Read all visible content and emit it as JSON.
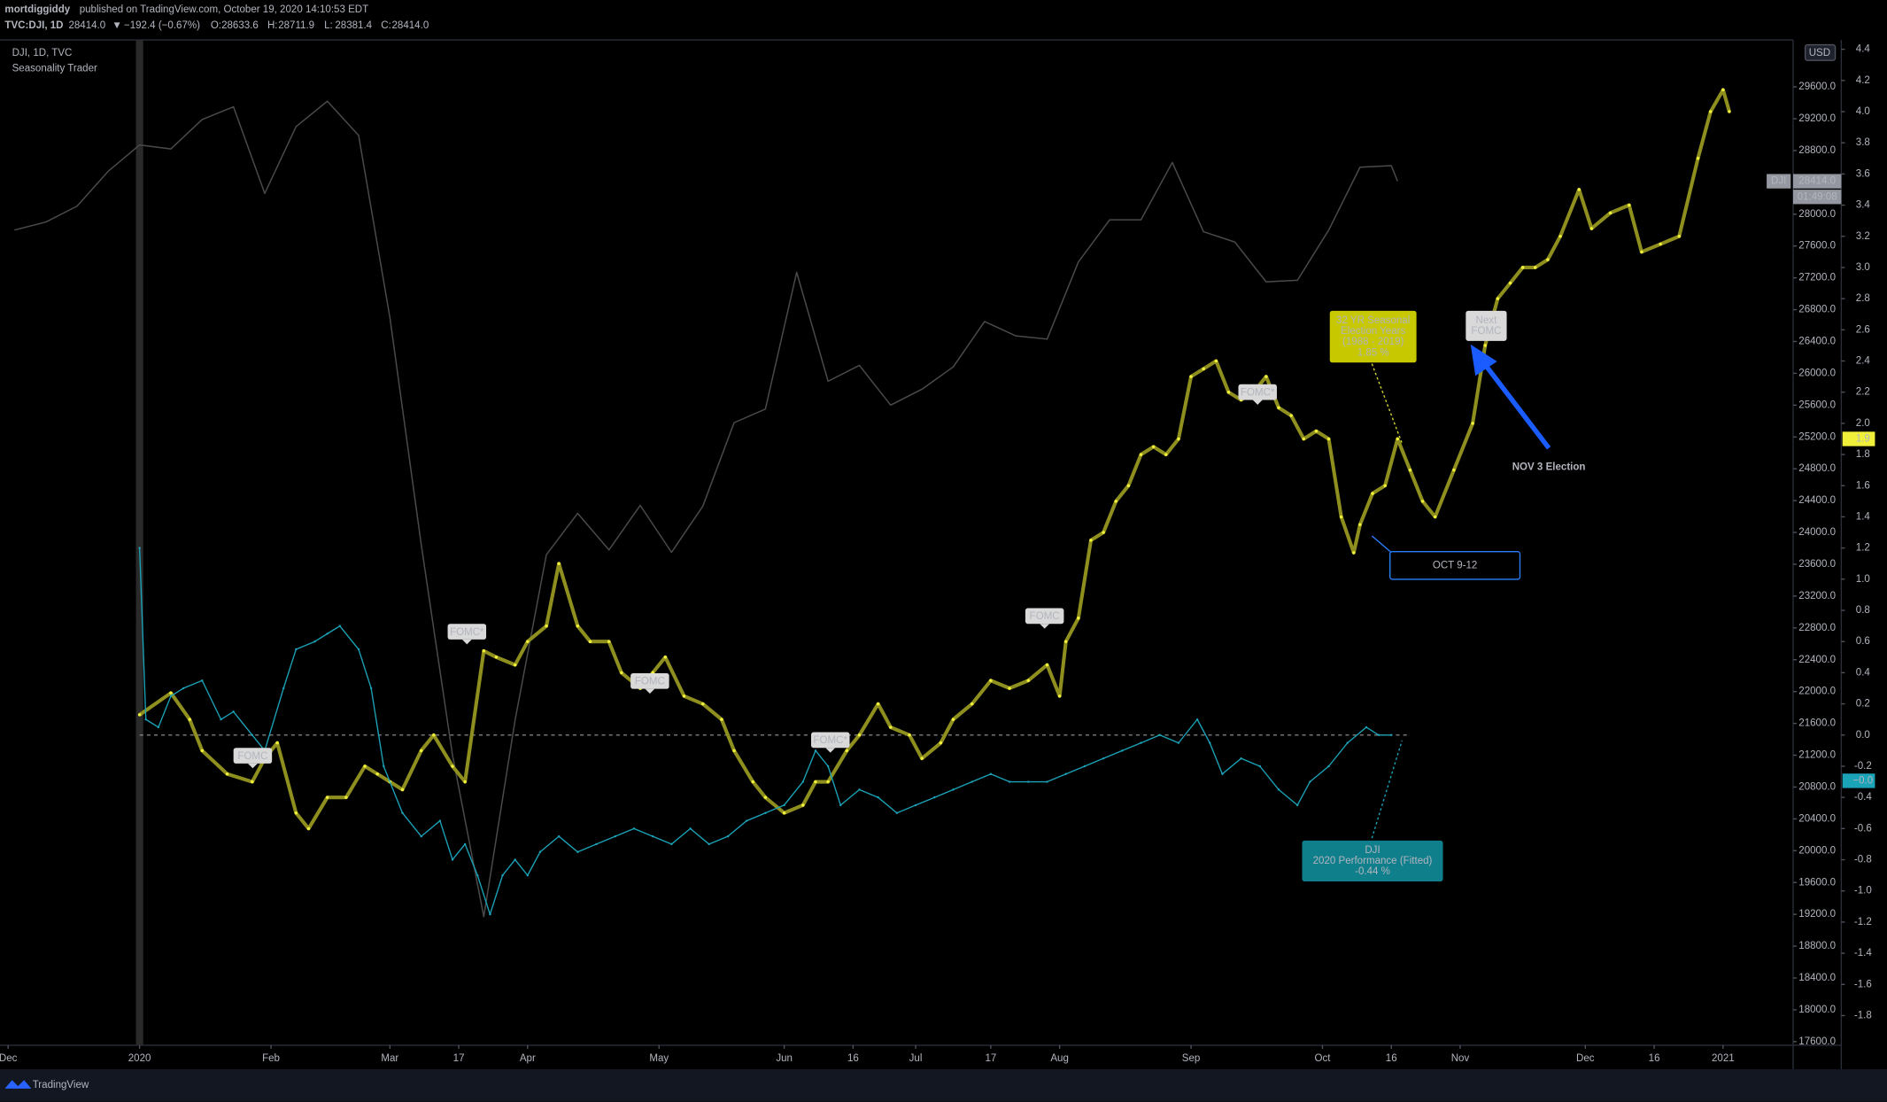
{
  "chart_data": {
    "type": "line",
    "xlim": [
      -22.3,
      264.2
    ],
    "ylim": [
      17555,
      30190
    ],
    "y2lim": [
      -1.99,
      4.46
    ],
    "grid": false,
    "xticks": [
      {
        "value": -21,
        "label": "Dec"
      },
      {
        "value": 0,
        "label": "2020"
      },
      {
        "value": 21,
        "label": "Feb"
      },
      {
        "value": 40,
        "label": "Mar"
      },
      {
        "value": 51,
        "label": "17"
      },
      {
        "value": 62,
        "label": "Apr"
      },
      {
        "value": 83,
        "label": "May"
      },
      {
        "value": 103,
        "label": "Jun"
      },
      {
        "value": 114,
        "label": "16"
      },
      {
        "value": 124,
        "label": "Jul"
      },
      {
        "value": 136,
        "label": "17"
      },
      {
        "value": 147,
        "label": "Aug"
      },
      {
        "value": 168,
        "label": "Sep"
      },
      {
        "value": 189,
        "label": "Oct"
      },
      {
        "value": 200,
        "label": "16"
      },
      {
        "value": 211,
        "label": "Nov"
      },
      {
        "value": 231,
        "label": "Dec"
      },
      {
        "value": 242,
        "label": "16"
      },
      {
        "value": 253,
        "label": "2021"
      }
    ],
    "yticks": [
      {
        "value": 17600,
        "label": "17600.0"
      },
      {
        "value": 18000,
        "label": "18000.0"
      },
      {
        "value": 18400,
        "label": "18400.0"
      },
      {
        "value": 18800,
        "label": "18800.0"
      },
      {
        "value": 19200,
        "label": "19200.0"
      },
      {
        "value": 19600,
        "label": "19600.0"
      },
      {
        "value": 20000,
        "label": "20000.0"
      },
      {
        "value": 20400,
        "label": "20400.0"
      },
      {
        "value": 20800,
        "label": "20800.0"
      },
      {
        "value": 21200,
        "label": "21200.0"
      },
      {
        "value": 21600,
        "label": "21600.0"
      },
      {
        "value": 22000,
        "label": "22000.0"
      },
      {
        "value": 22400,
        "label": "22400.0"
      },
      {
        "value": 22800,
        "label": "22800.0"
      },
      {
        "value": 23200,
        "label": "23200.0"
      },
      {
        "value": 23600,
        "label": "23600.0"
      },
      {
        "value": 24000,
        "label": "24000.0"
      },
      {
        "value": 24400,
        "label": "24400.0"
      },
      {
        "value": 24800,
        "label": "24800.0"
      },
      {
        "value": 25200,
        "label": "25200.0"
      },
      {
        "value": 25600,
        "label": "25600.0"
      },
      {
        "value": 26000,
        "label": "26000.0"
      },
      {
        "value": 26400,
        "label": "26400.0"
      },
      {
        "value": 26800,
        "label": "26800.0"
      },
      {
        "value": 27200,
        "label": "27200.0"
      },
      {
        "value": 27600,
        "label": "27600.0"
      },
      {
        "value": 28000,
        "label": "28000.0"
      },
      {
        "value": 28400,
        "label": "28400.0"
      },
      {
        "value": 28800,
        "label": "28800.0"
      },
      {
        "value": 29200,
        "label": "29200.0"
      },
      {
        "value": 29600,
        "label": "29600.0"
      }
    ],
    "y2ticks": [
      -1.8,
      -1.6,
      -1.4,
      -1.2,
      {
        "value": -1,
        "label": "-1.0"
      },
      -0.8,
      -0.6,
      -0.4,
      -0.2,
      {
        "value": 0,
        "label": "0.0"
      },
      0.2,
      0.4,
      0.6,
      0.8,
      {
        "value": 1,
        "label": "1.0"
      },
      1.2,
      1.4,
      1.6,
      1.8,
      {
        "value": 2,
        "label": "2.0"
      },
      2.2,
      2.4,
      2.6,
      2.8,
      {
        "value": 3,
        "label": "3.0"
      },
      3.2,
      3.4,
      3.6,
      3.8,
      {
        "value": 4,
        "label": "4.0"
      },
      4.2,
      4.4
    ],
    "series": [
      {
        "color": "#4a4a4a",
        "x": [
          -20,
          -15,
          -10,
          -5,
          0,
          5,
          10,
          15,
          20,
          25,
          30,
          35,
          40,
          45,
          50,
          55,
          60,
          65,
          70,
          75,
          80,
          85,
          90,
          95,
          100,
          105,
          110,
          115,
          120,
          125,
          130,
          135,
          140,
          145,
          150,
          155,
          160,
          165,
          170,
          175,
          180,
          185,
          190,
          195,
          200,
          201
        ],
        "values": [
          27800,
          27900,
          28100,
          28540,
          28870,
          28820,
          29190,
          29350,
          28260,
          29100,
          29420,
          28990,
          26700,
          23850,
          21200,
          19170,
          21640,
          23720,
          24240,
          23780,
          24340,
          23750,
          24330,
          25380,
          25550,
          27270,
          25900,
          26100,
          25600,
          25800,
          26080,
          26650,
          26470,
          26430,
          27400,
          27930,
          27930,
          28650,
          27780,
          27650,
          27150,
          27170,
          27800,
          28590,
          28610,
          28414
        ]
      },
      {
        "color": "#8f8f1f",
        "marker_color": "#f0f03a",
        "axis": "y2",
        "x": [
          0,
          5,
          8,
          10,
          14,
          18,
          20,
          22,
          25,
          27,
          30,
          33,
          36,
          38,
          40,
          42,
          45,
          47,
          50,
          52,
          55,
          57,
          60,
          62,
          65,
          67,
          70,
          72,
          75,
          77,
          80,
          82,
          84,
          87,
          90,
          93,
          95,
          98,
          100,
          103,
          106,
          108,
          110,
          113,
          115,
          118,
          120,
          123,
          125,
          128,
          130,
          133,
          136,
          139,
          142,
          145,
          147,
          148,
          150,
          152,
          154,
          156,
          158,
          160,
          162,
          164,
          166,
          168,
          170,
          172,
          174,
          176,
          178,
          180,
          182,
          184,
          186,
          188,
          190,
          192,
          194,
          195,
          197,
          199,
          201,
          203,
          205,
          207,
          210,
          213,
          215,
          217,
          219,
          221,
          223,
          225,
          227,
          230,
          232,
          235,
          238,
          240,
          243,
          246,
          249,
          251,
          253,
          254
        ],
        "values": [
          0.13,
          0.27,
          0.1,
          -0.1,
          -0.25,
          -0.3,
          -0.15,
          -0.05,
          -0.5,
          -0.6,
          -0.4,
          -0.4,
          -0.2,
          -0.25,
          -0.3,
          -0.35,
          -0.1,
          0.0,
          -0.2,
          -0.3,
          0.54,
          0.5,
          0.45,
          0.6,
          0.7,
          1.1,
          0.7,
          0.6,
          0.6,
          0.4,
          0.3,
          0.4,
          0.5,
          0.25,
          0.2,
          0.1,
          -0.1,
          -0.3,
          -0.4,
          -0.5,
          -0.45,
          -0.3,
          -0.3,
          -0.1,
          0.0,
          0.2,
          0.05,
          0.0,
          -0.15,
          -0.05,
          0.1,
          0.2,
          0.35,
          0.3,
          0.35,
          0.45,
          0.25,
          0.6,
          0.75,
          1.25,
          1.3,
          1.5,
          1.6,
          1.8,
          1.85,
          1.8,
          1.9,
          2.3,
          2.35,
          2.4,
          2.2,
          2.15,
          2.2,
          2.3,
          2.1,
          2.05,
          1.9,
          1.95,
          1.9,
          1.4,
          1.17,
          1.35,
          1.55,
          1.6,
          1.9,
          1.7,
          1.5,
          1.4,
          1.7,
          2.0,
          2.5,
          2.8,
          2.9,
          3.0,
          3.0,
          3.05,
          3.2,
          3.5,
          3.25,
          3.35,
          3.4,
          3.1,
          3.15,
          3.2,
          3.7,
          4.0,
          4.14,
          4.0
        ]
      },
      {
        "color": "#1ba3b8",
        "axis": "y2",
        "x": [
          0,
          1,
          3,
          5,
          7,
          10,
          13,
          15,
          18,
          20,
          23,
          25,
          28,
          30,
          32,
          35,
          37,
          39,
          42,
          45,
          48,
          50,
          52,
          54,
          56,
          58,
          60,
          62,
          64,
          67,
          70,
          73,
          76,
          79,
          82,
          85,
          88,
          91,
          94,
          97,
          100,
          103,
          106,
          108,
          110,
          112,
          115,
          118,
          121,
          124,
          127,
          130,
          133,
          136,
          139,
          142,
          145,
          148,
          151,
          154,
          157,
          160,
          163,
          166,
          169,
          171,
          173,
          176,
          179,
          182,
          185,
          187,
          190,
          193,
          196,
          198,
          200
        ],
        "values": [
          1.2,
          0.1,
          0.05,
          0.25,
          0.3,
          0.35,
          0.1,
          0.15,
          0.0,
          -0.1,
          0.3,
          0.55,
          0.6,
          0.65,
          0.7,
          0.55,
          0.3,
          -0.2,
          -0.5,
          -0.65,
          -0.55,
          -0.8,
          -0.7,
          -0.9,
          -1.15,
          -0.9,
          -0.8,
          -0.9,
          -0.75,
          -0.65,
          -0.75,
          -0.7,
          -0.65,
          -0.6,
          -0.65,
          -0.7,
          -0.6,
          -0.7,
          -0.65,
          -0.55,
          -0.5,
          -0.45,
          -0.3,
          -0.1,
          -0.2,
          -0.45,
          -0.35,
          -0.4,
          -0.5,
          -0.45,
          -0.4,
          -0.35,
          -0.3,
          -0.25,
          -0.3,
          -0.3,
          -0.3,
          -0.25,
          -0.2,
          -0.15,
          -0.1,
          -0.05,
          0.0,
          -0.05,
          0.1,
          -0.05,
          -0.25,
          -0.15,
          -0.2,
          -0.35,
          -0.45,
          -0.3,
          -0.2,
          -0.05,
          0.05,
          0.0,
          0.0
        ]
      }
    ],
    "price_tag": {
      "name": "DJI",
      "value": 28414,
      "label": "28414.0",
      "countdown": "01:49:08"
    },
    "seasonal_tag": {
      "value": 1.9,
      "label": "1.9"
    },
    "performance_tag": {
      "value": 0,
      "label": "−0.0"
    },
    "currency": "USD",
    "legend_title": "DJI, 1D, TVC",
    "legend_subtitle": "Seasonality Trader",
    "fomc_labels": [
      "FOMC",
      "FOMC*",
      "FOMC",
      "FOMC*",
      "FOMC",
      "FOMC*"
    ],
    "seasonal_note": [
      "32 YR Seasonal",
      "Election Years",
      "(1988 - 2019)",
      "1.85 %"
    ],
    "next_fomc": [
      "Next",
      "FOMC"
    ],
    "election_note": "NOV 3 Election",
    "oct_note": "OCT 9-12",
    "performance_note": [
      "DJI",
      "2020 Performance (Fitted)",
      "-0.44 %"
    ]
  },
  "header": {
    "user": "mortdiggiddy",
    "published": " published on TradingView.com, October 19, 2020 14:10:53 EDT",
    "symbol": "TVC:DJI, 1D",
    "last": "28414.0",
    "arrow": "▼",
    "change": "−192.4 (−0.67%)",
    "ohlc": [
      "O:",
      "28633.6",
      "H:",
      "28711.9",
      "L:",
      "28381.4",
      "C:",
      "28414.0"
    ]
  },
  "footer": {
    "brand": "TradingView"
  }
}
